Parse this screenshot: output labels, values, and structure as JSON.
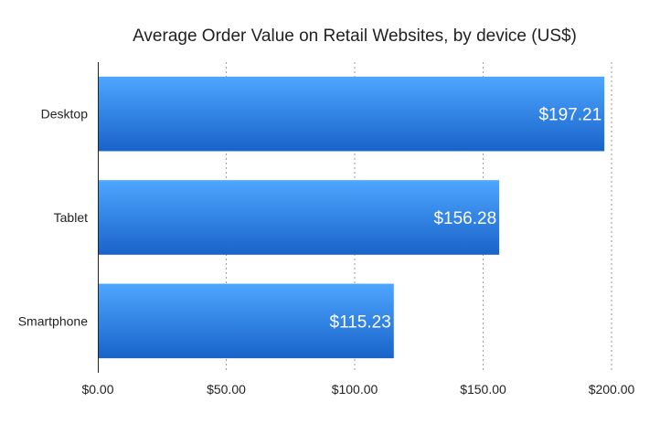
{
  "chart_data": {
    "type": "bar",
    "orientation": "horizontal",
    "title": "Average Order Value on Retail Websites, by device (US$)",
    "categories": [
      "Desktop",
      "Tablet",
      "Smartphone"
    ],
    "values": [
      197.21,
      156.28,
      115.23
    ],
    "data_labels": [
      "$197.21",
      "$156.28",
      "$115.23"
    ],
    "xlim": [
      0,
      200
    ],
    "x_ticks": [
      0,
      50,
      100,
      150,
      200
    ],
    "x_tick_labels": [
      "$0.00",
      "$50.00",
      "$100.00",
      "$150.00",
      "$200.00"
    ],
    "xlabel": "",
    "ylabel": "",
    "grid": true,
    "legend": false,
    "bar_color_top": "#4ea6ff",
    "bar_color_bottom": "#1863c9"
  }
}
